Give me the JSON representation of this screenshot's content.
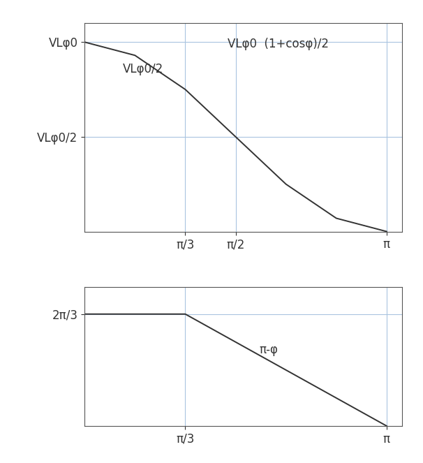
{
  "chart_data": [
    {
      "type": "line",
      "x": [
        0,
        0.5236,
        1.0472,
        1.5708,
        2.0944,
        2.618,
        3.1416
      ],
      "values": [
        1,
        0.93,
        0.75,
        0.5,
        0.25,
        0.07,
        0
      ],
      "color": "#333333",
      "xlim": [
        0,
        3.3
      ],
      "ylim": [
        0,
        1.1
      ],
      "xticks": [
        {
          "value": 1.0472,
          "label": "π/3"
        },
        {
          "value": 1.5708,
          "label": "π/2"
        },
        {
          "value": 3.1416,
          "label": "π"
        }
      ],
      "yticks": [
        {
          "value": 0.5,
          "label": "VLφ0/2"
        },
        {
          "value": 1,
          "label": "VLφ0"
        }
      ],
      "annotations": [
        "VLφ0  (1+cosφ)/2",
        "VLφ0/2"
      ],
      "grid": true
    },
    {
      "type": "line",
      "x": [
        0,
        1.0472,
        3.1416
      ],
      "values": [
        2.0944,
        2.0944,
        0
      ],
      "color": "#333333",
      "xlim": [
        0,
        3.3
      ],
      "ylim": [
        0,
        2.6
      ],
      "xticks": [
        {
          "value": 1.0472,
          "label": "π/3"
        },
        {
          "value": 3.1416,
          "label": "π"
        }
      ],
      "yticks": [
        {
          "value": 2.0944,
          "label": "2π/3"
        }
      ],
      "annotations": [
        "π-φ"
      ],
      "grid": true
    }
  ]
}
